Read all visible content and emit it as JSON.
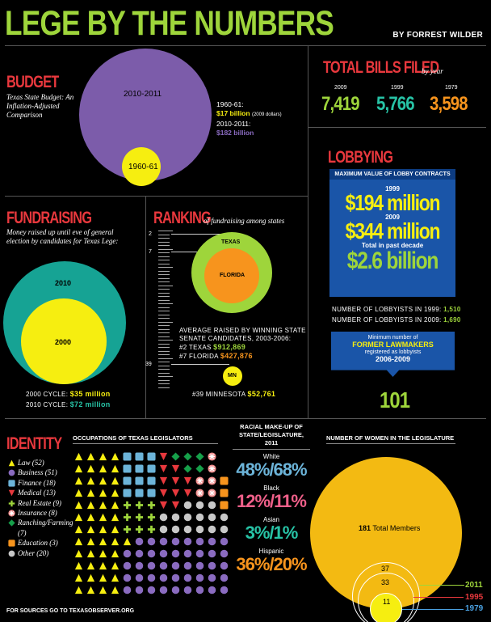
{
  "header": {
    "title": "LEGE BY THE NUMBERS",
    "byline": "BY FORREST WILDER"
  },
  "budget": {
    "heading": "BUDGET",
    "desc": "Texas State Budget: An Inflation-Adjusted Comparison",
    "big_label": "2010-2011",
    "small_label": "1960-61",
    "val1_label": "1960-61:",
    "val1": "$17 billion",
    "val1_note": "(2009 dollars)",
    "val2_label": "2010-2011:",
    "val2": "$182 billion",
    "colors": {
      "big": "#7c5caa",
      "small": "#f6ee10"
    }
  },
  "bills": {
    "heading": "TOTAL BILLS FILED",
    "sub": "by year",
    "items": [
      {
        "year": "2009",
        "value": "7,419",
        "color": "#9ed53b"
      },
      {
        "year": "1999",
        "value": "5,766",
        "color": "#27c3a6"
      },
      {
        "year": "1979",
        "value": "3,598",
        "color": "#f7941d"
      }
    ]
  },
  "lobbying": {
    "heading": "LOBBYING",
    "box_title": "MAXIMUM VALUE OF LOBBY CONTRACTS",
    "y1": "1999",
    "v1": "$194 million",
    "y2": "2009",
    "v2": "$344 million",
    "past_label": "Total in past decade",
    "past_val": "$2.6 billion",
    "n1_label": "NUMBER OF LOBBYISTS IN 1999:",
    "n1": "1,510",
    "n2_label": "NUMBER OF LOBBYISTS IN 2009:",
    "n2": "1,690",
    "former_l1": "Minimum number of",
    "former_l2": "FORMER LAWMAKERS",
    "former_l3": "registered as lobbyists",
    "former_years": "2006-2009",
    "former_val": "101"
  },
  "fundraising": {
    "heading": "FUNDRAISING",
    "desc": "Money raised up until eve of general election by candidates for Texas Lege:",
    "big_label": "2010",
    "small_label": "2000",
    "c1_label": "2000 CYCLE:",
    "c1": "$35 million",
    "c2_label": "2010 CYCLE:",
    "c2": "$72 million"
  },
  "ranking": {
    "heading": "RANKING",
    "sub": "of fundraising among states",
    "r2": "2",
    "r7": "7",
    "r39": "39",
    "texas": "TEXAS",
    "florida": "FLORIDA",
    "mn": "MN",
    "avg_l1": "AVERAGE RAISED BY WINNING STATE",
    "avg_l2": "SENATE CANDIDATES, 2003-2006:",
    "tx_label": "#2 TEXAS",
    "tx_val": "$912,869",
    "fl_label": "#7 FLORIDA",
    "fl_val": "$427,876",
    "mn_rank": "#39",
    "mn_label": "MINNESOTA",
    "mn_val": "$52,761"
  },
  "identity": {
    "heading": "IDENTITY",
    "legend": [
      {
        "shape": "triangle",
        "label": "Law (52)",
        "color": "#f6ee10"
      },
      {
        "shape": "circle",
        "label": "Business (51)",
        "color": "#8a6bc0"
      },
      {
        "shape": "square",
        "label": "Finance (18)",
        "color": "#6cb4d9"
      },
      {
        "shape": "down-triangle",
        "label": "Medical (13)",
        "color": "#e8383d"
      },
      {
        "shape": "plus",
        "label": "Real Estate (9)",
        "color": "#9ed53b"
      },
      {
        "shape": "star",
        "label": "Insurance (8)",
        "color": "#f28a8a"
      },
      {
        "shape": "diamond",
        "label": "Ranching/Farming (7)",
        "color": "#16a04a"
      },
      {
        "shape": "square",
        "label": "Education (3)",
        "color": "#f7941d"
      },
      {
        "shape": "circle",
        "label": "Other (20)",
        "color": "#c8c8c8"
      }
    ],
    "occ_title": "OCCUPATIONS OF TEXAS LEGISLATORS",
    "racial_title_l1": "RACIAL MAKE-UP OF",
    "racial_title_l2": "STATE/LEGISLATURE, 2011",
    "racial": [
      {
        "label": "White",
        "value": "48%/68%",
        "color": "#6cb4d9"
      },
      {
        "label": "Black",
        "value": "12%/11%",
        "color": "#f0608a"
      },
      {
        "label": "Asian",
        "value": "3%/1%",
        "color": "#27c3a6"
      },
      {
        "label": "Hispanic",
        "value": "36%/20%",
        "color": "#f7941d"
      }
    ],
    "women_title": "NUMBER OF WOMEN IN THE LEGISLATURE",
    "total_label": "181",
    "total_text": "Total Members",
    "w2011": "37",
    "w1995": "33",
    "w1979": "11",
    "y2011": "2011",
    "y1995": "1995",
    "y1979": "1979"
  },
  "footer": "FOR SOURCES GO TO TEXASOBSERVER.ORG"
}
